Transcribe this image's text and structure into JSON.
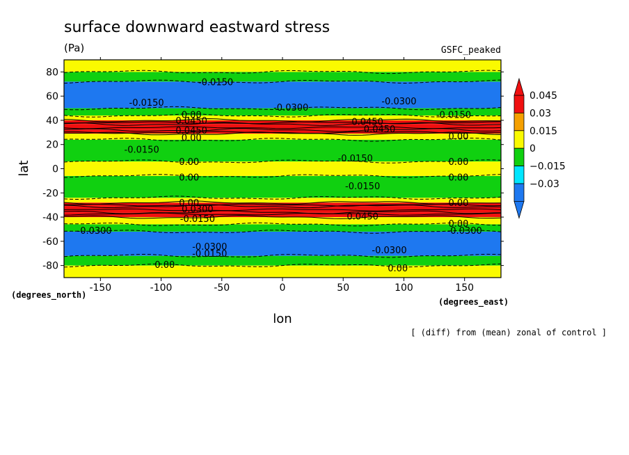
{
  "chart_data": {
    "type": "heatmap",
    "title": "surface downward eastward stress",
    "units": "(Pa)",
    "model_label": "GSFC_peaked",
    "xlabel": "lon",
    "ylabel": "lat",
    "x_units": "(degrees_east)",
    "y_units": "(degrees_north)",
    "footnote": "[ (diff) from (mean) zonal of control ]",
    "xlim": [
      -180,
      180
    ],
    "ylim": [
      -90,
      90
    ],
    "x_ticks": [
      -150,
      -100,
      -50,
      0,
      50,
      100,
      150
    ],
    "y_ticks": [
      -80,
      -60,
      -40,
      -20,
      0,
      20,
      40,
      60,
      80
    ],
    "colorbar": {
      "levels": [
        -0.045,
        -0.03,
        -0.015,
        0,
        0.015,
        0.03,
        0.045
      ],
      "tick_labels": [
        "0.045",
        "0.03",
        "0.015",
        "0",
        "−0.015",
        "−0.03"
      ],
      "colors": [
        "#1e78f0",
        "#00e6ff",
        "#10d010",
        "#fafa00",
        "#f5a000",
        "#f01010"
      ]
    },
    "bands": [
      {
        "lat": [
          -90,
          -80
        ],
        "value": 0.005
      },
      {
        "lat": [
          -80,
          -72
        ],
        "value": -0.012
      },
      {
        "lat": [
          -72,
          -52
        ],
        "value": -0.032
      },
      {
        "lat": [
          -52,
          -46
        ],
        "value": -0.01
      },
      {
        "lat": [
          -46,
          -40
        ],
        "value": 0.01
      },
      {
        "lat": [
          -40,
          -36
        ],
        "value": 0.035
      },
      {
        "lat": [
          -36,
          -31
        ],
        "value": 0.05
      },
      {
        "lat": [
          -31,
          -28
        ],
        "value": 0.035
      },
      {
        "lat": [
          -28,
          -24
        ],
        "value": 0.01
      },
      {
        "lat": [
          -24,
          -6
        ],
        "value": -0.012
      },
      {
        "lat": [
          -6,
          6
        ],
        "value": 0.005
      },
      {
        "lat": [
          6,
          24
        ],
        "value": -0.012
      },
      {
        "lat": [
          24,
          29
        ],
        "value": 0.01
      },
      {
        "lat": [
          29,
          32
        ],
        "value": 0.035
      },
      {
        "lat": [
          32,
          37
        ],
        "value": 0.05
      },
      {
        "lat": [
          37,
          40
        ],
        "value": 0.035
      },
      {
        "lat": [
          40,
          44
        ],
        "value": 0.01
      },
      {
        "lat": [
          44,
          50
        ],
        "value": -0.01
      },
      {
        "lat": [
          50,
          72
        ],
        "value": -0.032
      },
      {
        "lat": [
          72,
          80
        ],
        "value": -0.012
      },
      {
        "lat": [
          80,
          90
        ],
        "value": 0.005
      }
    ],
    "contour_labels": [
      {
        "lon": -55,
        "lat": 72,
        "text": "-0.0150"
      },
      {
        "lon": -112,
        "lat": 55,
        "text": "-0.0150"
      },
      {
        "lon": 7,
        "lat": 51,
        "text": "-0.0300"
      },
      {
        "lon": 96,
        "lat": 56,
        "text": "-0.0300"
      },
      {
        "lon": 141,
        "lat": 45,
        "text": "-0.0150"
      },
      {
        "lon": -75,
        "lat": 45,
        "text": "0.00"
      },
      {
        "lon": -75,
        "lat": 40,
        "text": "0.0450"
      },
      {
        "lon": 70,
        "lat": 39,
        "text": "0.0450"
      },
      {
        "lon": 80,
        "lat": 33,
        "text": "0.0450"
      },
      {
        "lon": -75,
        "lat": 32,
        "text": "0.0450"
      },
      {
        "lon": -75,
        "lat": 26,
        "text": "0.00"
      },
      {
        "lon": 145,
        "lat": 27,
        "text": "0.00"
      },
      {
        "lon": -116,
        "lat": 16,
        "text": "-0.0150"
      },
      {
        "lon": 60,
        "lat": 9,
        "text": "-0.0150"
      },
      {
        "lon": -77,
        "lat": 6,
        "text": "0.00"
      },
      {
        "lon": 145,
        "lat": 6,
        "text": "0.00"
      },
      {
        "lon": -77,
        "lat": -7,
        "text": "0.00"
      },
      {
        "lon": 145,
        "lat": -7,
        "text": "0.00"
      },
      {
        "lon": 66,
        "lat": -14,
        "text": "-0.0150"
      },
      {
        "lon": -77,
        "lat": -28,
        "text": "0.00"
      },
      {
        "lon": 145,
        "lat": -28,
        "text": "0.00"
      },
      {
        "lon": -70,
        "lat": -33,
        "text": "0.0300"
      },
      {
        "lon": 66,
        "lat": -39,
        "text": "0.0450"
      },
      {
        "lon": -70,
        "lat": -41,
        "text": "-0.0150"
      },
      {
        "lon": 145,
        "lat": -45,
        "text": "0.00"
      },
      {
        "lon": -155,
        "lat": -51,
        "text": "-0.0300"
      },
      {
        "lon": 150,
        "lat": -51,
        "text": "-0.0300"
      },
      {
        "lon": -60,
        "lat": -64,
        "text": "-0.0300"
      },
      {
        "lon": -60,
        "lat": -70,
        "text": "-0.0150"
      },
      {
        "lon": 88,
        "lat": -67,
        "text": "-0.0300"
      },
      {
        "lon": -97,
        "lat": -79,
        "text": "0.00"
      },
      {
        "lon": 95,
        "lat": -82,
        "text": "0.00"
      }
    ]
  }
}
